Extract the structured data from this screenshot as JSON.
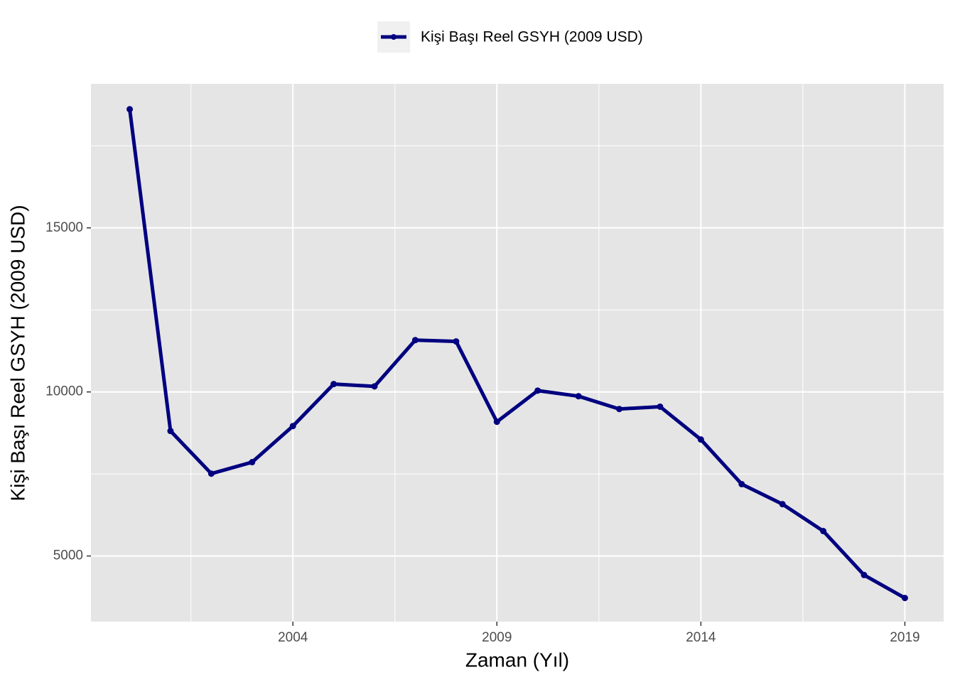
{
  "chart_data": {
    "type": "line",
    "x_label": "Zaman (Yıl)",
    "y_label": "Kişi Başı Reel GSYH (2009 USD)",
    "x": [
      2000,
      2001,
      2002,
      2003,
      2004,
      2005,
      2006,
      2007,
      2008,
      2009,
      2010,
      2011,
      2012,
      2013,
      2014,
      2015,
      2016,
      2017,
      2018,
      2019
    ],
    "series": [
      {
        "name": "Kişi Başı Reel GSYH (2009 USD)",
        "color": "#000080",
        "values": [
          18615,
          8810,
          7510,
          7860,
          8960,
          10240,
          10170,
          11580,
          11540,
          9090,
          10040,
          9870,
          9480,
          9550,
          8550,
          7190,
          6580,
          5760,
          4420,
          3720
        ]
      }
    ],
    "xlim": [
      1999.05,
      2019.95
    ],
    "xticks": [
      2004,
      2009,
      2014,
      2019
    ],
    "ylim": [
      3000,
      19390
    ],
    "yticks": [
      5000,
      10000,
      15000
    ],
    "grid": true,
    "legend": "top"
  }
}
